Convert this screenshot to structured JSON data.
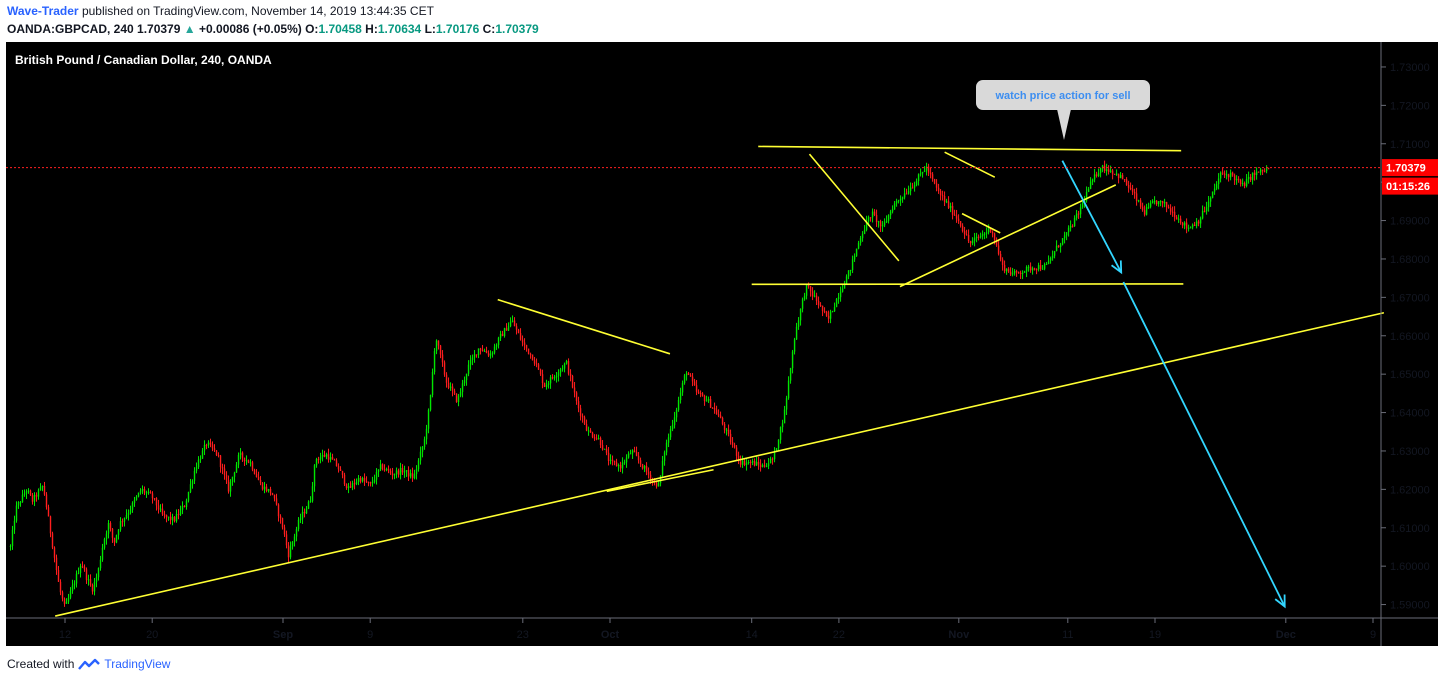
{
  "header": {
    "author": "Wave-Trader",
    "published_text": "published on TradingView.com, November 14, 2019 13:44:35 CET",
    "symbol": "OANDA:GBPCAD, 240",
    "last": "1.70379",
    "change": "+0.00086 (+0.05%)",
    "o_label": "O:",
    "o": "1.70458",
    "h_label": "H:",
    "h": "1.70634",
    "l_label": "L:",
    "l": "1.70176",
    "c_label": "C:",
    "c": "1.70379"
  },
  "footer": {
    "created_with": "Created with",
    "brand": "TradingView"
  },
  "colors": {
    "background": "#000000",
    "up": "#00e600",
    "down": "#ff1e1e",
    "trendline": "#ffff33",
    "projection": "#33d6ff",
    "price_line": "#ff2020",
    "price_label": "#ff0000"
  },
  "chart_data": {
    "type": "candlestick",
    "title": "British Pound / Canadian Dollar, 240, OANDA",
    "y_ticks": [
      "1.73000",
      "1.72000",
      "1.71000",
      "1.70000",
      "1.69000",
      "1.68000",
      "1.67000",
      "1.66000",
      "1.65000",
      "1.64000",
      "1.63000",
      "1.62000",
      "1.61000",
      "1.60000",
      "1.59000"
    ],
    "ylim": [
      1.5865,
      1.7365
    ],
    "x_ticks": [
      {
        "label": "12",
        "day": 0
      },
      {
        "label": "20",
        "day": 8
      },
      {
        "label": "Sep",
        "day": 20
      },
      {
        "label": "9",
        "day": 28
      },
      {
        "label": "23",
        "day": 42
      },
      {
        "label": "Oct",
        "day": 50
      },
      {
        "label": "14",
        "day": 63
      },
      {
        "label": "22",
        "day": 71
      },
      {
        "label": "Nov",
        "day": 82
      },
      {
        "label": "11",
        "day": 92
      },
      {
        "label": "19",
        "day": 100
      },
      {
        "label": "Dec",
        "day": 112
      },
      {
        "label": "9",
        "day": 120
      }
    ],
    "x_ref": {
      "day0": 59,
      "px_per_day": 10.9
    },
    "last_price": {
      "value": 1.70379,
      "label": "1.70379",
      "countdown": "01:15:26"
    },
    "price_path": [
      [
        -5,
        1.605
      ],
      [
        -4.5,
        1.615
      ],
      [
        -3.5,
        1.62
      ],
      [
        -3,
        1.617
      ],
      [
        -2,
        1.621
      ],
      [
        -1.5,
        1.612
      ],
      [
        -1,
        1.603
      ],
      [
        -0.5,
        1.594
      ],
      [
        0,
        1.589
      ],
      [
        1,
        1.597
      ],
      [
        1.5,
        1.601
      ],
      [
        2,
        1.597
      ],
      [
        2.5,
        1.594
      ],
      [
        3,
        1.598
      ],
      [
        3.5,
        1.606
      ],
      [
        4,
        1.611
      ],
      [
        4.5,
        1.606
      ],
      [
        5,
        1.611
      ],
      [
        6,
        1.615
      ],
      [
        7,
        1.62
      ],
      [
        8,
        1.618
      ],
      [
        9,
        1.613
      ],
      [
        10,
        1.612
      ],
      [
        11,
        1.616
      ],
      [
        12,
        1.626
      ],
      [
        13,
        1.632
      ],
      [
        14,
        1.629
      ],
      [
        15,
        1.62
      ],
      [
        16,
        1.629
      ],
      [
        17,
        1.627
      ],
      [
        18,
        1.621
      ],
      [
        19,
        1.619
      ],
      [
        20,
        1.61
      ],
      [
        20.5,
        1.603
      ],
      [
        21.5,
        1.612
      ],
      [
        22.5,
        1.617
      ],
      [
        23,
        1.628
      ],
      [
        24,
        1.629
      ],
      [
        25,
        1.626
      ],
      [
        26,
        1.62
      ],
      [
        27,
        1.623
      ],
      [
        28,
        1.621
      ],
      [
        29,
        1.626
      ],
      [
        30,
        1.624
      ],
      [
        31,
        1.625
      ],
      [
        32,
        1.623
      ],
      [
        33,
        1.633
      ],
      [
        33.5,
        1.643
      ],
      [
        34,
        1.66
      ],
      [
        35,
        1.648
      ],
      [
        36,
        1.643
      ],
      [
        37,
        1.652
      ],
      [
        38,
        1.657
      ],
      [
        39,
        1.655
      ],
      [
        40,
        1.66
      ],
      [
        41,
        1.664
      ],
      [
        42,
        1.658
      ],
      [
        43,
        1.654
      ],
      [
        44,
        1.647
      ],
      [
        45,
        1.65
      ],
      [
        46,
        1.653
      ],
      [
        47,
        1.642
      ],
      [
        48,
        1.635
      ],
      [
        49,
        1.633
      ],
      [
        50,
        1.627
      ],
      [
        51,
        1.626
      ],
      [
        52,
        1.63
      ],
      [
        53,
        1.626
      ],
      [
        54,
        1.622
      ],
      [
        54.5,
        1.621
      ],
      [
        55,
        1.63
      ],
      [
        56,
        1.64
      ],
      [
        57,
        1.651
      ],
      [
        58,
        1.645
      ],
      [
        59,
        1.643
      ],
      [
        60,
        1.639
      ],
      [
        61,
        1.633
      ],
      [
        62,
        1.627
      ],
      [
        63,
        1.627
      ],
      [
        64,
        1.626
      ],
      [
        65,
        1.628
      ],
      [
        66,
        1.64
      ],
      [
        67,
        1.661
      ],
      [
        68,
        1.673
      ],
      [
        69,
        1.669
      ],
      [
        70,
        1.664
      ],
      [
        71,
        1.671
      ],
      [
        72,
        1.677
      ],
      [
        73,
        1.686
      ],
      [
        74,
        1.692
      ],
      [
        75,
        1.688
      ],
      [
        76,
        1.694
      ],
      [
        77,
        1.697
      ],
      [
        78,
        1.7
      ],
      [
        79,
        1.704
      ],
      [
        80,
        1.698
      ],
      [
        81,
        1.694
      ],
      [
        82,
        1.69
      ],
      [
        83,
        1.684
      ],
      [
        84,
        1.686
      ],
      [
        85,
        1.688
      ],
      [
        86,
        1.678
      ],
      [
        87,
        1.676
      ],
      [
        88,
        1.677
      ],
      [
        89,
        1.678
      ],
      [
        90,
        1.678
      ],
      [
        91,
        1.683
      ],
      [
        92,
        1.687
      ],
      [
        93,
        1.692
      ],
      [
        94,
        1.699
      ],
      [
        95,
        1.704
      ],
      [
        96,
        1.703
      ],
      [
        97,
        1.701
      ],
      [
        98,
        1.697
      ],
      [
        99,
        1.692
      ],
      [
        100,
        1.695
      ],
      [
        101,
        1.694
      ],
      [
        102,
        1.691
      ],
      [
        103,
        1.688
      ],
      [
        104,
        1.69
      ],
      [
        105,
        1.695
      ],
      [
        106,
        1.702
      ],
      [
        107,
        1.702
      ],
      [
        108,
        1.699
      ],
      [
        109,
        1.702
      ],
      [
        110,
        1.703
      ],
      [
        110.6,
        1.7038
      ]
    ],
    "annotation": {
      "text": "watch price action for sell"
    }
  }
}
